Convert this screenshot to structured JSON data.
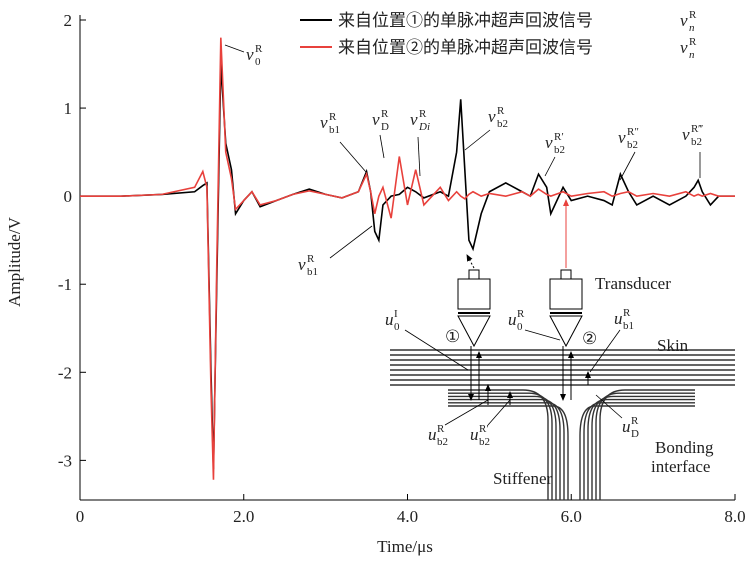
{
  "chart_data": {
    "type": "line",
    "x_label": "Time/μs",
    "y_label": "Amplitude/V",
    "x": [
      0,
      0.5,
      1.0,
      1.4,
      1.5,
      1.55,
      1.6,
      1.63,
      1.67,
      1.72,
      1.78,
      1.85,
      1.9,
      2.0,
      2.1,
      2.2,
      2.4,
      2.6,
      2.8,
      3.0,
      3.2,
      3.4,
      3.5,
      3.55,
      3.6,
      3.65,
      3.7,
      3.8,
      3.9,
      4.0,
      4.1,
      4.2,
      4.4,
      4.5,
      4.6,
      4.65,
      4.7,
      4.75,
      4.8,
      4.9,
      5.0,
      5.2,
      5.4,
      5.5,
      5.6,
      5.7,
      5.75,
      5.9,
      6.0,
      6.2,
      6.4,
      6.5,
      6.6,
      6.7,
      6.8,
      7.0,
      7.2,
      7.4,
      7.5,
      7.55,
      7.6,
      7.7,
      7.8,
      8.0
    ],
    "series": [
      {
        "name": "来自位置①的单脉冲超声回波信号",
        "symbol": {
          "base": "v",
          "sub": "n",
          "sup": "R"
        },
        "color": "#000000",
        "values": [
          0,
          0,
          0.02,
          0.05,
          0.12,
          0.15,
          -2.0,
          -3.1,
          -1.0,
          1.5,
          0.6,
          0.3,
          -0.2,
          -0.05,
          0.05,
          -0.12,
          -0.05,
          0.02,
          0.08,
          0.02,
          -0.02,
          0.05,
          0.28,
          0.05,
          -0.4,
          -0.5,
          -0.1,
          0.0,
          0.02,
          0.1,
          0.05,
          -0.02,
          0.05,
          0.0,
          0.5,
          1.1,
          0.3,
          -0.5,
          -0.6,
          -0.2,
          0.05,
          0.15,
          0.05,
          0.0,
          0.25,
          0.1,
          -0.2,
          0.1,
          -0.05,
          0.0,
          -0.05,
          -0.1,
          0.25,
          0.05,
          -0.1,
          0.0,
          -0.1,
          0.0,
          0.1,
          0.18,
          0.05,
          -0.1,
          0.0,
          0.0
        ]
      },
      {
        "name": "来自位置②的单脉冲超声回波信号",
        "symbol": {
          "base": "v",
          "sub": "n",
          "sup": "R"
        },
        "color": "#e8413c",
        "values": [
          0,
          0,
          0.02,
          0.1,
          0.28,
          0.1,
          -2.2,
          -3.22,
          -0.8,
          1.8,
          0.5,
          0.2,
          -0.15,
          -0.05,
          0.05,
          -0.1,
          -0.05,
          0.02,
          0.06,
          0.02,
          -0.02,
          0.05,
          0.25,
          0.05,
          -0.2,
          0.0,
          0.1,
          -0.25,
          0.45,
          -0.1,
          0.3,
          -0.1,
          0.1,
          -0.05,
          0.05,
          0.0,
          -0.03,
          0.02,
          0.05,
          0.0,
          0.03,
          0.0,
          0.05,
          0.0,
          0.08,
          0.02,
          0.0,
          0.05,
          0.0,
          0.03,
          0.05,
          0.0,
          0.03,
          0.05,
          0.0,
          0.03,
          0.0,
          0.05,
          0.0,
          0.02,
          0.0,
          0.03,
          0.0,
          0.0
        ]
      }
    ],
    "xlim": [
      0,
      8
    ],
    "ylim": [
      -3.45,
      2
    ],
    "xticks": [
      0,
      {
        "value": 2,
        "label": "2.0"
      },
      {
        "value": 4,
        "label": "4.0"
      },
      {
        "value": 6,
        "label": "6.0"
      },
      {
        "value": 8,
        "label": "8.0"
      }
    ],
    "yticks": [
      2,
      1,
      0,
      -1,
      -2,
      -3
    ],
    "annotations": [
      {
        "base": "v",
        "sub": "0",
        "sup": "R"
      },
      {
        "base": "v",
        "sub": "b1",
        "sup": "R"
      },
      {
        "base": "v",
        "sub": "D",
        "sup": "R"
      },
      {
        "base": "v",
        "sub": "Di",
        "sup": "R"
      },
      {
        "base": "v",
        "sub": "b2",
        "sup": "R"
      },
      {
        "base": "v",
        "sub": "b2",
        "sup": "R′"
      },
      {
        "base": "v",
        "sub": "b2",
        "sup": "R″"
      },
      {
        "base": "v",
        "sub": "b2",
        "sup": "R‴"
      },
      {
        "base": "v",
        "sub": "b1",
        "sup": "R"
      }
    ]
  },
  "diagram": {
    "labels": [
      "Transducer",
      "Skin",
      "Stiffener",
      "Bonding",
      "interface",
      "①",
      "②"
    ],
    "symbols": [
      {
        "base": "u",
        "sub": "0",
        "sup": "I"
      },
      {
        "base": "u",
        "sub": "0",
        "sup": "R"
      },
      {
        "base": "u",
        "sub": "b1",
        "sup": "R"
      },
      {
        "base": "u",
        "sub": "b2",
        "sup": "R"
      },
      {
        "base": "u",
        "sub": "b2",
        "sup": "R′"
      },
      {
        "base": "u",
        "sub": "D",
        "sup": "R"
      }
    ]
  }
}
